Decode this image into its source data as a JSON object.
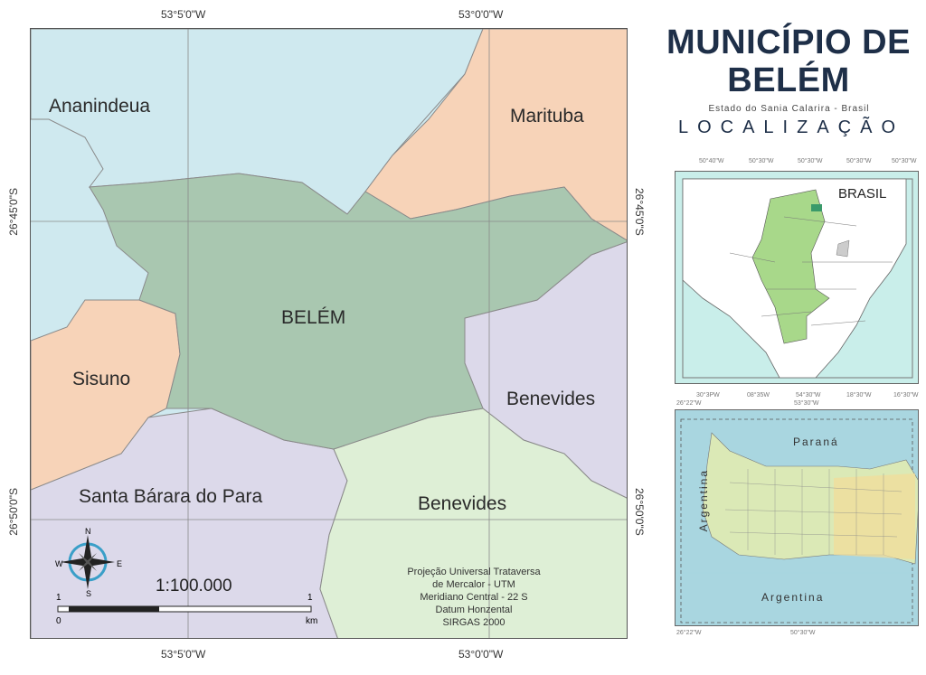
{
  "title": {
    "line1": "MUNICÍPIO DE",
    "line2": "BELÉM",
    "subtitle": "Estado do Sania Calarira - Brasil",
    "section": "LOCALIZAÇÃO"
  },
  "coords": {
    "top_left": "53°5'0\"W",
    "top_right": "53°0'0\"W",
    "bottom_left": "53°5'0\"W",
    "bottom_right": "53°0'0\"W",
    "left_upper": "26°45'0\"S",
    "left_lower": "26°50'0\"S",
    "right_upper": "26°45'0\"S",
    "right_lower": "26°50'0\"S"
  },
  "regions": {
    "ananindeua": "Ananindeua",
    "marituba": "Marituba",
    "belem": "BELÉM",
    "sisuno": "Sisuno",
    "benevides_right": "Benevides",
    "santa_barbara": "Santa Bárara do Para",
    "benevides_bottom": "Benevides"
  },
  "colors": {
    "water": "#cfe9ef",
    "ananindeua": "#cfe9ef",
    "marituba": "#f7d3b8",
    "belem": "#a9c7b0",
    "sisuno": "#f7d3b8",
    "benevides": "#dcd9ea",
    "santa_barbara": "#dcd9ea",
    "benevides_bottom": "#deefd6"
  },
  "compass": {
    "n": "N",
    "s": "S",
    "e": "E",
    "w": "W"
  },
  "scale": {
    "ratio": "1:100.000",
    "left": "1",
    "right": "1",
    "zero": "0",
    "unit": "km"
  },
  "projection": [
    "Projeção Universal Trataversa",
    "de Mercalor - UTM",
    "Meridiano Central - 22 S",
    "Datum Honzental",
    "SIRGAS 2000"
  ],
  "inset_brasil": {
    "label": "BRASIL",
    "top_ticks": [
      "50°40\"W",
      "50°30\"W",
      "50°30\"W",
      "50°30\"W",
      "50°30\"W"
    ],
    "bottom_ticks": [
      "30°3PW",
      "08°35W",
      "54°30\"W",
      "18°30\"W",
      "16°30\"W"
    ]
  },
  "inset_state": {
    "north": "Paraná",
    "west": "Argentina",
    "south": "Argentina",
    "top_ticks": [
      "26°22\"W",
      "53°30\"W"
    ],
    "bottom_ticks": [
      "26°22\"W",
      "50°30\"W"
    ]
  }
}
